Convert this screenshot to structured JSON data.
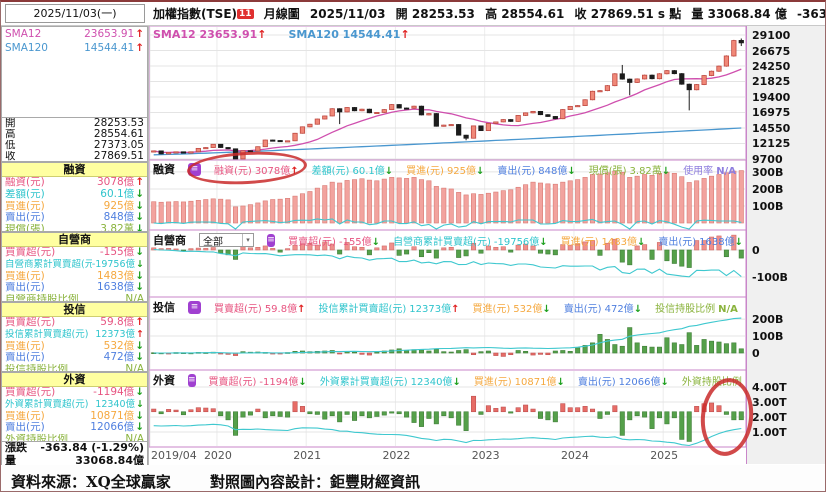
{
  "window": {
    "top_date": "2025/11/03(一)"
  },
  "header": {
    "instrument": "加權指數(TSE)",
    "badge": "11",
    "period": "月線圖",
    "date": "2025/11/03",
    "open_label": "開",
    "open": "28253.53",
    "high_label": "高",
    "high": "28554.61",
    "close_label": "收",
    "close": "27869.51",
    "close_suffix": "s 點",
    "vol_label": "量",
    "volume": "33068.84",
    "vol_unit": "億",
    "change": "-363.84 (-1.29%)"
  },
  "legend": {
    "sma12_label": "SMA12",
    "sma12_value": "23653.91",
    "sma120_label": "SMA120",
    "sma120_value": "14544.41"
  },
  "sidebar": {
    "sma_rows": [
      {
        "label": "SMA12",
        "value": "23653.91",
        "dir": "up",
        "color": "sma12"
      },
      {
        "label": "SMA120",
        "value": "14544.41",
        "dir": "up",
        "color": "sma120"
      }
    ],
    "ohlc_rows": [
      {
        "label": "開",
        "value": "28253.53"
      },
      {
        "label": "高",
        "value": "28554.61"
      },
      {
        "label": "低",
        "value": "27373.05"
      },
      {
        "label": "收",
        "value": "27869.51"
      }
    ],
    "sections": [
      {
        "title": "融資",
        "rows": [
          {
            "label": "融資(元)",
            "value": "3078億",
            "dir": "up",
            "color": "red"
          },
          {
            "label": "差額(元)",
            "value": "60.1億",
            "dir": "down",
            "color": "cyan"
          },
          {
            "label": "買進(元)",
            "value": "925億",
            "dir": "down",
            "color": "orange"
          },
          {
            "label": "賣出(元)",
            "value": "848億",
            "dir": "down",
            "color": "blue"
          },
          {
            "label": "現償(張)",
            "value": "3.82萬",
            "dir": "down",
            "color": "green"
          }
        ]
      },
      {
        "title": "自營商",
        "rows": [
          {
            "label": "買賣超(元)",
            "value": "-155億",
            "dir": "down",
            "color": "red"
          },
          {
            "label": "自營商累計買賣超(元)",
            "value": "-19756億",
            "dir": "down",
            "color": "cyan"
          },
          {
            "label": "買進(元)",
            "value": "1483億",
            "dir": "down",
            "color": "orange"
          },
          {
            "label": "賣出(元)",
            "value": "1638億",
            "dir": "down",
            "color": "blue"
          },
          {
            "label": "自營商持股比例",
            "value": "N/A",
            "dir": "none",
            "color": "green"
          }
        ]
      },
      {
        "title": "投信",
        "rows": [
          {
            "label": "買賣超(元)",
            "value": "59.8億",
            "dir": "up",
            "color": "red"
          },
          {
            "label": "投信累計買賣超(元)",
            "value": "12373億",
            "dir": "up",
            "color": "cyan"
          },
          {
            "label": "買進(元)",
            "value": "532億",
            "dir": "down",
            "color": "orange"
          },
          {
            "label": "賣出(元)",
            "value": "472億",
            "dir": "down",
            "color": "blue"
          },
          {
            "label": "投信持股比例",
            "value": "N/A",
            "dir": "none",
            "color": "green"
          }
        ]
      },
      {
        "title": "外資",
        "rows": [
          {
            "label": "買賣超(元)",
            "value": "-1194億",
            "dir": "down",
            "color": "red"
          },
          {
            "label": "外資累計買賣超(元)",
            "value": "12340億",
            "dir": "down",
            "color": "cyan"
          },
          {
            "label": "買進(元)",
            "value": "10871億",
            "dir": "down",
            "color": "orange"
          },
          {
            "label": "賣出(元)",
            "value": "12066億",
            "dir": "down",
            "color": "blue"
          },
          {
            "label": "外資持股比例",
            "value": "N/A",
            "dir": "none",
            "color": "green"
          }
        ]
      }
    ],
    "summary_rows": [
      {
        "label": "漲跌",
        "value": "-363.84 (-1.29%)"
      },
      {
        "label": "量",
        "value": "33068.84億"
      }
    ]
  },
  "panel_headers": [
    {
      "name": "融資",
      "has_dropdown": false,
      "items": [
        {
          "label": "融資(元)",
          "value": "3078億",
          "dir": "up",
          "color": "red"
        },
        {
          "label": "差額(元)",
          "value": "60.1億",
          "dir": "down",
          "color": "cyan"
        },
        {
          "label": "買進(元)",
          "value": "925億",
          "dir": "down",
          "color": "orange"
        },
        {
          "label": "賣出(元)",
          "value": "848億",
          "dir": "down",
          "color": "blue"
        },
        {
          "label": "現償(張)",
          "value": "3.82萬",
          "dir": "down",
          "color": "green"
        },
        {
          "label": "使用率",
          "value": "N/A",
          "dir": "none",
          "color": "purple"
        }
      ]
    },
    {
      "name": "自營商",
      "has_dropdown": true,
      "dropdown_value": "全部",
      "items": [
        {
          "label": "買賣超(元)",
          "value": "-155億",
          "dir": "down",
          "color": "red"
        },
        {
          "label": "自營商累計買賣超(元)",
          "value": "-19756億",
          "dir": "down",
          "color": "cyan"
        },
        {
          "label": "買進(元)",
          "value": "1483億",
          "dir": "down",
          "color": "orange"
        },
        {
          "label": "賣出(元)",
          "value": "1638億",
          "dir": "down",
          "color": "blue"
        }
      ]
    },
    {
      "name": "投信",
      "has_dropdown": false,
      "items": [
        {
          "label": "買賣超(元)",
          "value": "59.8億",
          "dir": "up",
          "color": "red"
        },
        {
          "label": "投信累計買賣超(元)",
          "value": "12373億",
          "dir": "up",
          "color": "cyan"
        },
        {
          "label": "買進(元)",
          "value": "532億",
          "dir": "down",
          "color": "orange"
        },
        {
          "label": "賣出(元)",
          "value": "472億",
          "dir": "down",
          "color": "blue"
        },
        {
          "label": "投信持股比例",
          "value": "N/A",
          "dir": "none",
          "color": "green"
        }
      ]
    },
    {
      "name": "外資",
      "has_dropdown": false,
      "items": [
        {
          "label": "買賣超(元)",
          "value": "-1194億",
          "dir": "down",
          "color": "red"
        },
        {
          "label": "外資累計買賣超(元)",
          "value": "12340億",
          "dir": "down",
          "color": "cyan"
        },
        {
          "label": "買進(元)",
          "value": "10871億",
          "dir": "down",
          "color": "orange"
        },
        {
          "label": "賣出(元)",
          "value": "12066億",
          "dir": "down",
          "color": "blue"
        },
        {
          "label": "外資持股比例",
          "value": "N/A",
          "dir": "none",
          "color": "green"
        }
      ]
    }
  ],
  "footer": {
    "source": "資料來源：XQ全球贏家",
    "design": "對照圖內容設計：鉅豐財經資訊"
  },
  "colors": {
    "frame": "#c986c9",
    "grid": "#e4e4e4",
    "candle_up_fill": "#f08878",
    "candle_up_stroke": "#bf4a42",
    "candle_down": "#1c1c1c",
    "sma12": "#cf4fae",
    "sma120": "#4a97cf",
    "cyan_line": "#3fc8cf",
    "bar_margin_fill": "#f2a39e",
    "bar_margin_stroke": "#d97a74",
    "bar_pos_pink": "#ef908c",
    "bar_green": "#55a04a",
    "bar_red": "#e66c66",
    "arrow_up": "#e02222",
    "arrow_down": "#1fa01f",
    "red": "#e75480",
    "cyan": "#2fc4cc",
    "orange": "#f5a83f",
    "blue": "#4f7fdf",
    "green": "#8ab33c",
    "purple": "#8f7fdf",
    "section_yellow": "#ffffa0",
    "badge_red": "#e03030",
    "annotation": "#c92a2a"
  },
  "chart_data": {
    "type": "candlestick+bars",
    "title": "加權指數(TSE) 月線圖 2019/04 - 2025/11",
    "x_ticks": [
      {
        "index": 0,
        "label": "2019/04"
      },
      {
        "index": 9,
        "label": "2020"
      },
      {
        "index": 21,
        "label": "2021"
      },
      {
        "index": 33,
        "label": "2022"
      },
      {
        "index": 45,
        "label": "2023"
      },
      {
        "index": 57,
        "label": "2024"
      },
      {
        "index": 69,
        "label": "2025"
      }
    ],
    "main": {
      "y_ticks": [
        29100,
        26675,
        24250,
        21825,
        19400,
        16975,
        14550,
        12125,
        9700
      ],
      "first_open": 10900,
      "closes": [
        10967,
        10498,
        10731,
        10824,
        10618,
        10829,
        11358,
        11490,
        11997,
        11495,
        11292,
        9708,
        10992,
        10942,
        11621,
        12665,
        12591,
        12515,
        12546,
        13723,
        14732,
        15138,
        15953,
        16431,
        17566,
        17068,
        17755,
        17247,
        17490,
        16934,
        16987,
        17428,
        18218,
        17674,
        17652,
        17963,
        16592,
        16807,
        14825,
        15000,
        15095,
        13425,
        12950,
        14880,
        14138,
        15265,
        15503,
        15868,
        15579,
        16512,
        16916,
        17145,
        16635,
        16353,
        16001,
        17433,
        17930,
        18059,
        18967,
        20294,
        20397,
        21174,
        23032,
        22199,
        21675,
        22225,
        22820,
        22262,
        23035,
        23525,
        23053,
        21404,
        20532,
        21347,
        22756,
        23434,
        24233,
        25820,
        28233,
        27870
      ],
      "overrides": {
        "11": {
          "low": 8523
        },
        "25": {
          "low": 15159
        },
        "42": {
          "low": 12629
        },
        "63": {
          "high": 24416
        },
        "64": {
          "low": 19662
        },
        "72": {
          "low": 17306
        },
        "79": {
          "open": 28253.53,
          "high": 28554.61,
          "low": 27373.05
        }
      },
      "sma12_last": 23653.91,
      "sma120_last": 14544.41
    },
    "panel_margin": {
      "y_ticks": [
        {
          "v": 300,
          "label": "300B"
        },
        {
          "v": 200,
          "label": "200B"
        },
        {
          "v": 100,
          "label": "100B"
        }
      ],
      "balance": [
        125,
        122,
        124,
        126,
        124,
        128,
        133,
        138,
        142,
        140,
        136,
        95,
        100,
        108,
        118,
        130,
        138,
        140,
        145,
        158,
        172,
        185,
        205,
        220,
        240,
        235,
        250,
        255,
        260,
        252,
        248,
        258,
        268,
        265,
        262,
        268,
        255,
        248,
        215,
        205,
        200,
        180,
        165,
        172,
        168,
        175,
        182,
        190,
        195,
        210,
        225,
        240,
        235,
        230,
        228,
        240,
        248,
        255,
        268,
        285,
        288,
        295,
        305,
        298,
        268,
        275,
        285,
        280,
        292,
        298,
        292,
        272,
        238,
        248,
        262,
        275,
        285,
        295,
        305,
        308
      ]
    },
    "panel_dealer": {
      "y_ticks": [
        {
          "v": 0,
          "label": "0"
        },
        {
          "v": -100,
          "label": "-100B"
        }
      ],
      "net": [
        8,
        5,
        6,
        4,
        -3,
        5,
        7,
        6,
        9,
        -12,
        -18,
        -35,
        12,
        8,
        10,
        15,
        6,
        -8,
        5,
        18,
        22,
        25,
        18,
        30,
        22,
        -15,
        28,
        12,
        10,
        -18,
        8,
        15,
        26,
        -20,
        -15,
        12,
        -25,
        -10,
        -30,
        8,
        10,
        -28,
        -22,
        25,
        -12,
        15,
        10,
        12,
        -8,
        18,
        22,
        15,
        -12,
        -15,
        -18,
        20,
        18,
        22,
        30,
        35,
        -20,
        25,
        40,
        -45,
        -55,
        15,
        20,
        -35,
        28,
        -40,
        -50,
        -60,
        -65,
        35,
        35,
        48,
        52,
        -25,
        55,
        -30
      ]
    },
    "panel_trust": {
      "y_ticks": [
        {
          "v": 200,
          "label": "200B"
        },
        {
          "v": 100,
          "label": "100B"
        },
        {
          "v": 0,
          "label": "0"
        }
      ],
      "net": [
        2,
        1,
        -2,
        3,
        2,
        1,
        4,
        3,
        5,
        -5,
        -8,
        -15,
        8,
        5,
        6,
        4,
        -6,
        -4,
        3,
        10,
        12,
        8,
        10,
        12,
        15,
        -5,
        10,
        6,
        -8,
        -12,
        5,
        12,
        18,
        25,
        15,
        20,
        18,
        12,
        22,
        8,
        6,
        15,
        20,
        -10,
        8,
        12,
        -15,
        -20,
        -10,
        15,
        10,
        -12,
        -8,
        -10,
        12,
        15,
        10,
        30,
        45,
        60,
        110,
        80,
        50,
        40,
        150,
        60,
        40,
        35,
        35,
        90,
        60,
        50,
        120,
        45,
        80,
        70,
        65,
        55,
        60,
        25
      ]
    },
    "panel_foreign": {
      "y_ticks": [
        {
          "v": 4000,
          "label": "4.00T"
        },
        {
          "v": 3000,
          "label": "3.00T"
        },
        {
          "v": 2000,
          "label": "2.00T"
        },
        {
          "v": 1000,
          "label": "1.00T"
        }
      ],
      "net": [
        40,
        -30,
        35,
        25,
        -45,
        30,
        60,
        55,
        45,
        -60,
        -120,
        -350,
        -80,
        -50,
        40,
        -90,
        -60,
        -70,
        -80,
        150,
        80,
        -30,
        -40,
        -110,
        -60,
        -150,
        -40,
        -130,
        -60,
        -90,
        -70,
        -50,
        -20,
        -30,
        -80,
        -160,
        -220,
        -100,
        -180,
        -60,
        -90,
        -200,
        -280,
        230,
        -40,
        90,
        50,
        70,
        -20,
        60,
        100,
        40,
        -100,
        -120,
        -150,
        120,
        60,
        60,
        80,
        40,
        -100,
        -40,
        90,
        -350,
        -120,
        -60,
        -80,
        -250,
        -90,
        -180,
        -90,
        -410,
        -440,
        80,
        120,
        130,
        90,
        -40,
        -120,
        -119
      ],
      "holdings_line": [
        1420,
        1400,
        1410,
        1430,
        1400,
        1420,
        1460,
        1480,
        1510,
        1480,
        1400,
        1150,
        1180,
        1170,
        1200,
        1160,
        1140,
        1120,
        1100,
        1220,
        1280,
        1270,
        1260,
        1190,
        1160,
        1060,
        1050,
        980,
        950,
        890,
        850,
        830,
        830,
        820,
        770,
        680,
        570,
        520,
        430,
        510,
        490,
        400,
        300,
        440,
        430,
        480,
        500,
        530,
        520,
        550,
        600,
        620,
        580,
        550,
        500,
        600,
        640,
        660,
        700,
        720,
        650,
        630,
        680,
        520,
        480,
        500,
        480,
        400,
        380,
        320,
        280,
        150,
        100,
        250,
        450,
        700,
        900,
        1050,
        1150,
        1234
      ]
    }
  }
}
